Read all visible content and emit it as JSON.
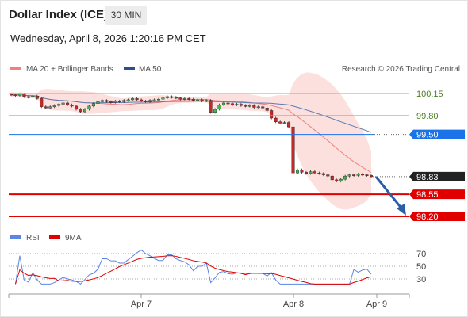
{
  "header": {
    "title": "Dollar Index (ICE)",
    "timeframe": "30 MIN"
  },
  "subtitle": "Wednesday, April 8, 2026 1:20:16 PM CET",
  "legend": {
    "ma20": "MA 20 + Bollinger Bands",
    "ma50": "MA 50",
    "credit": "Research © 2026 Trading Central"
  },
  "rsi_legend": {
    "rsi": "RSI",
    "ma9": "9MA"
  },
  "colors": {
    "up": "#4caf50",
    "down": "#c62828",
    "band": "#f9d5d3",
    "ma20": "#f08080",
    "ma50": "#5b7bb5",
    "pivot_blue": "#1a73e8",
    "support_red": "#e00000",
    "current": "#222222",
    "resistance_green": "#8bc34a",
    "rsi_line": "#5b86e5",
    "rsi_ma": "#e00000"
  },
  "chart_data": {
    "type": "candlestick",
    "x_ticks": [
      "Apr 7",
      "Apr 8",
      "Apr 9"
    ],
    "y_range": [
      98.0,
      100.25
    ],
    "levels": [
      {
        "label": "100.15",
        "value": 100.15,
        "kind": "resistance"
      },
      {
        "label": "99.80",
        "value": 99.8,
        "kind": "resistance"
      },
      {
        "label": "99.50",
        "value": 99.5,
        "kind": "pivot"
      },
      {
        "label": "98.83",
        "value": 98.83,
        "kind": "current"
      },
      {
        "label": "98.55",
        "value": 98.55,
        "kind": "support"
      },
      {
        "label": "98.20",
        "value": 98.2,
        "kind": "support"
      }
    ],
    "closes": [
      100.13,
      100.12,
      100.14,
      100.1,
      100.09,
      100.11,
      100.07,
      99.94,
      99.92,
      99.94,
      99.96,
      99.98,
      100.0,
      99.97,
      99.95,
      99.9,
      99.86,
      99.9,
      99.95,
      99.99,
      100.02,
      100.04,
      100.02,
      100.01,
      100.03,
      100.02,
      100.04,
      100.05,
      100.07,
      100.05,
      100.03,
      100.02,
      100.04,
      100.05,
      100.06,
      100.08,
      100.1,
      100.09,
      100.08,
      100.06,
      100.07,
      100.06,
      100.04,
      100.05,
      100.03,
      100.04,
      99.85,
      99.9,
      99.97,
      100.0,
      99.99,
      99.97,
      99.98,
      99.96,
      99.95,
      99.96,
      99.93,
      99.94,
      99.92,
      99.88,
      99.76,
      99.7,
      99.68,
      99.69,
      99.62,
      98.89,
      98.94,
      98.9,
      98.88,
      98.91,
      98.89,
      98.88,
      98.86,
      98.84,
      98.78,
      98.76,
      98.79,
      98.84,
      98.86,
      98.85,
      98.87,
      98.86,
      98.85,
      98.83
    ],
    "ma50_end": 99.4,
    "rsi": {
      "levels": [
        70,
        50,
        30
      ],
      "value_end": 34
    }
  }
}
